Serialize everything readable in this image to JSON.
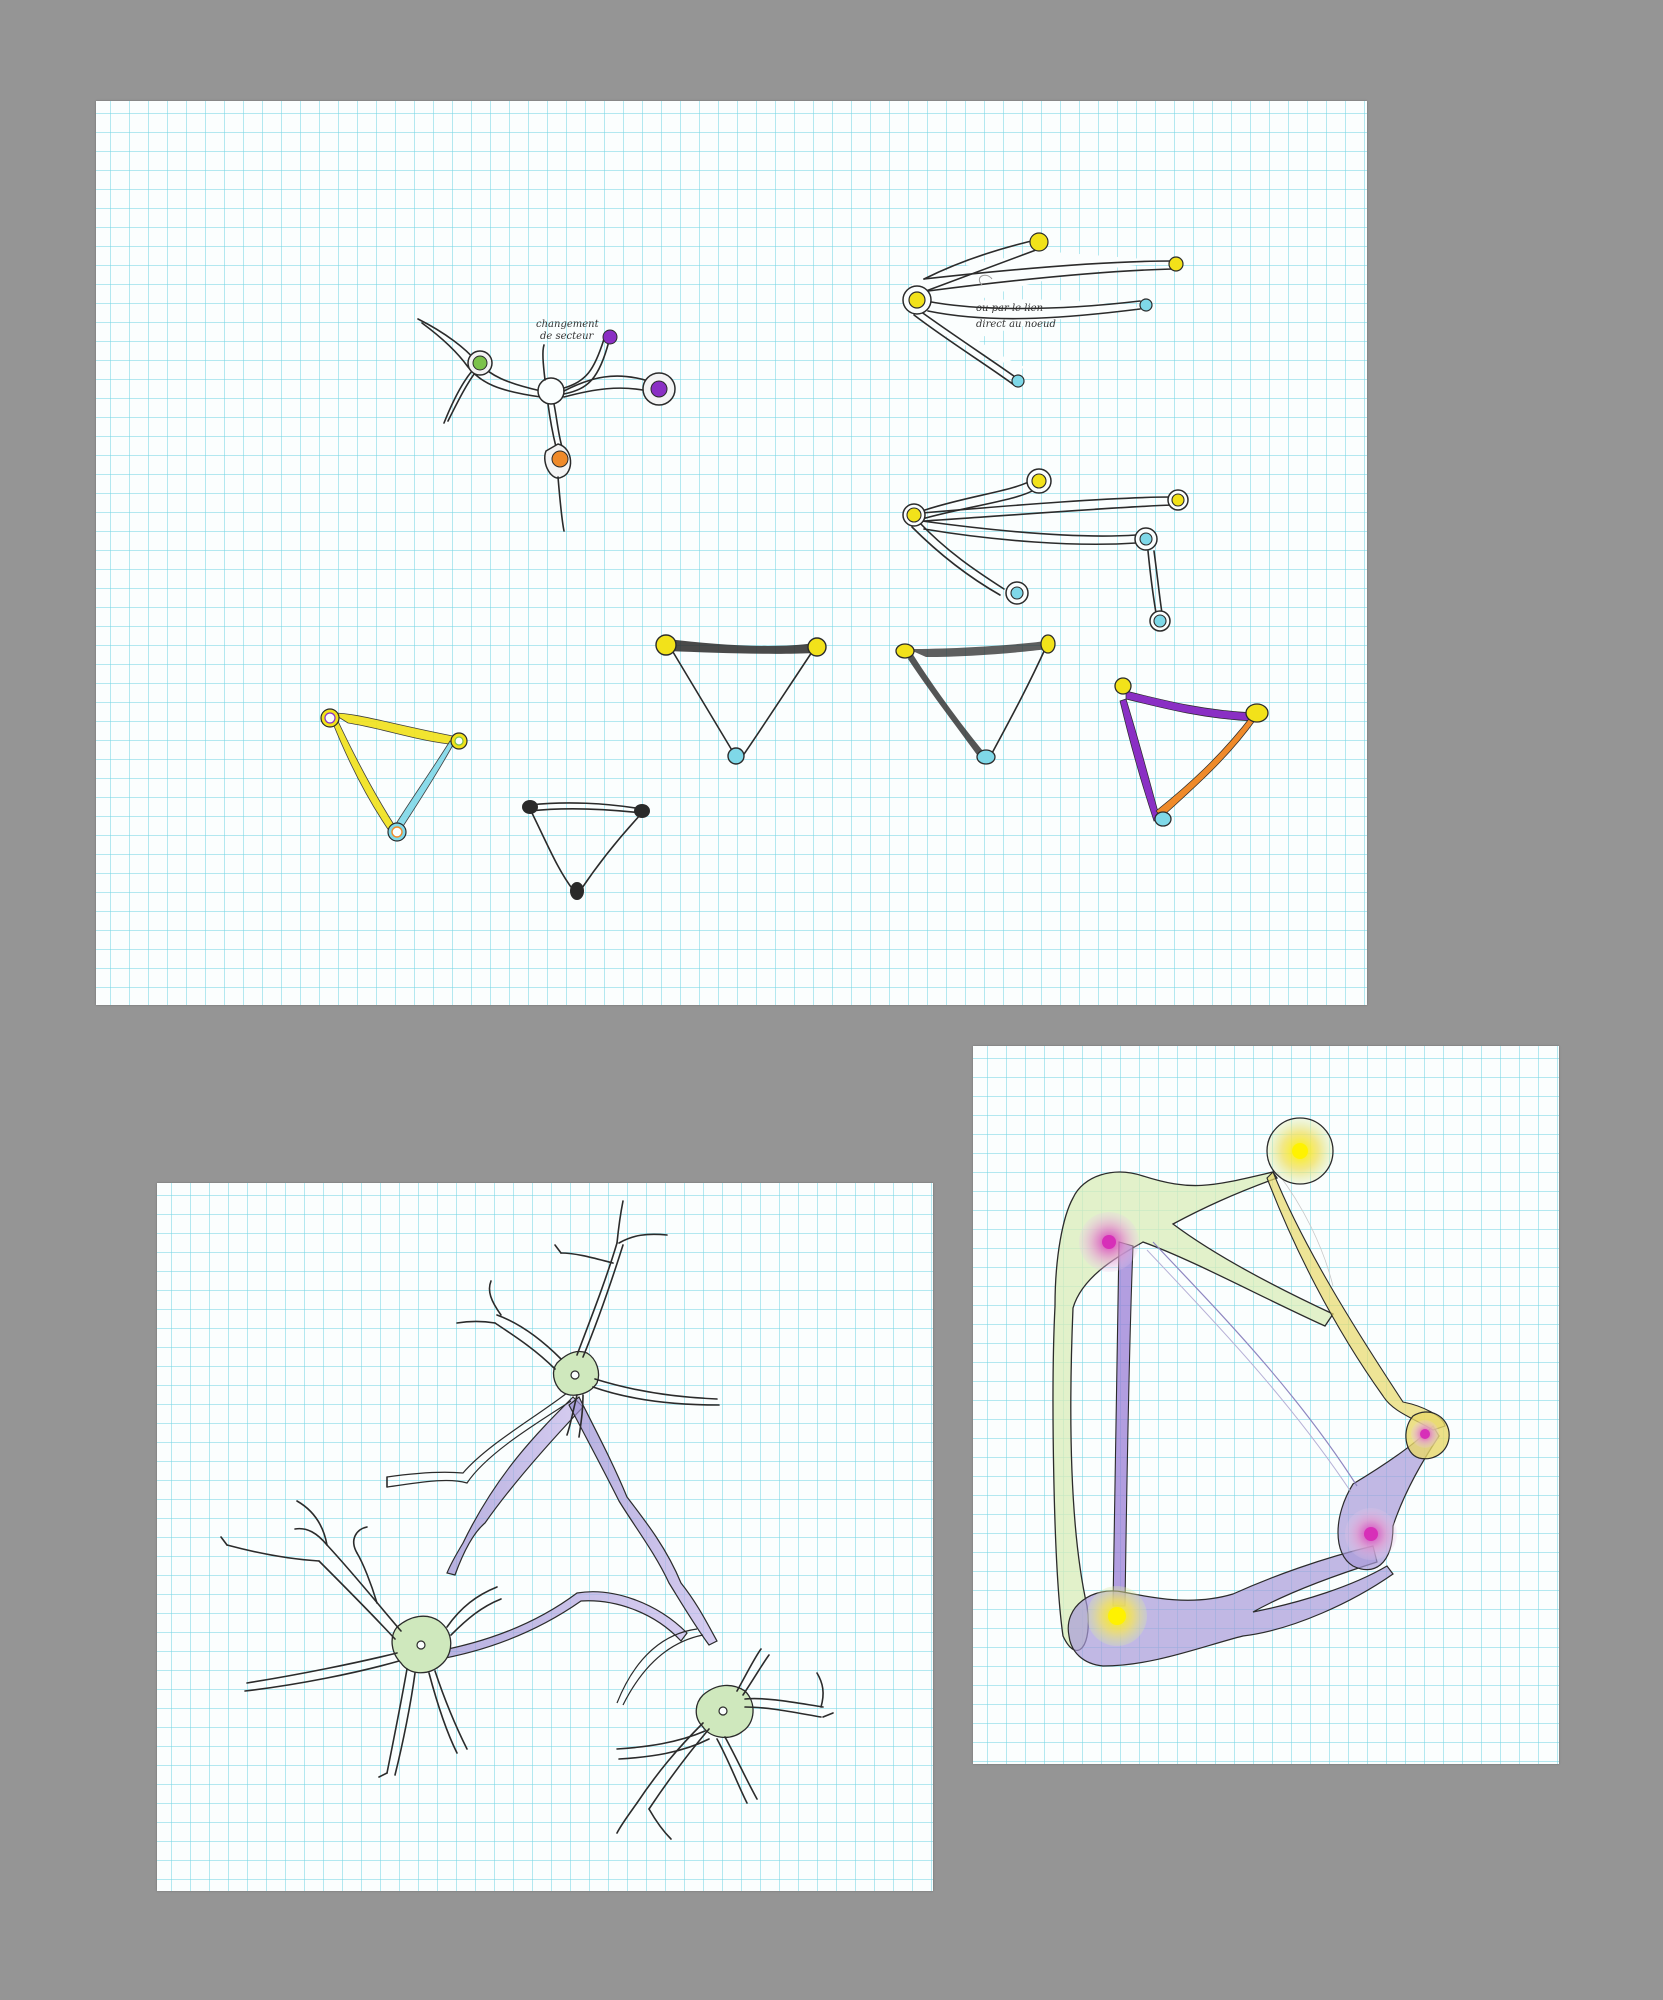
{
  "background_color": "#959595",
  "paper_color": "#fbfefe",
  "grid_color": "#78d6e4",
  "annotations": {
    "note_1_line_1": "changement",
    "note_1_line_2": "de secteur",
    "note_2_line_1": "ou par le lien",
    "note_2_line_2": "direct au noeud"
  },
  "node_colors": {
    "yellow": "#f2e21a",
    "cyan": "#7fd8e8",
    "purple": "#8a2fc4",
    "orange": "#ef8a2a",
    "green": "#7cc24a",
    "black": "#2a2a2a",
    "magenta": "#d72fb8"
  }
}
